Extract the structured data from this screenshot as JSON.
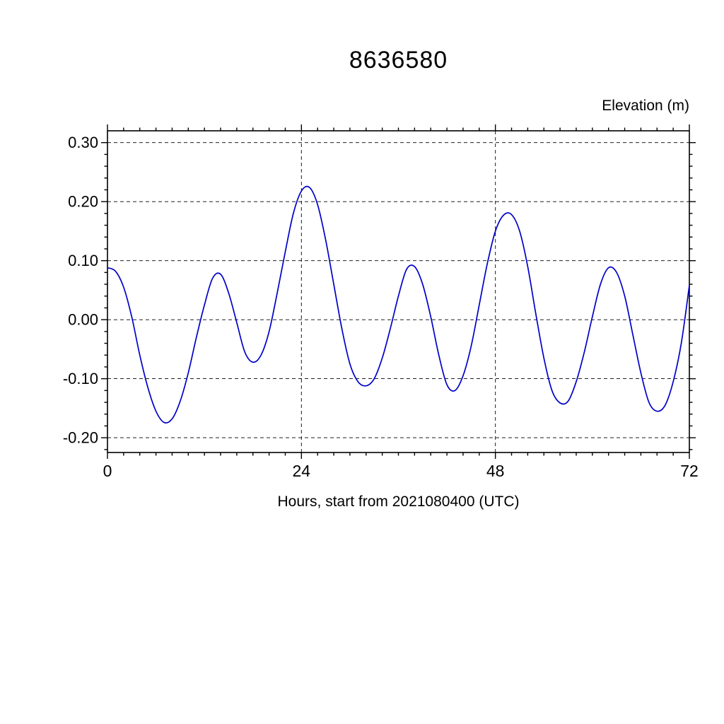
{
  "title": "8636580",
  "ylabel": "Elevation (m)",
  "xlabel": "Hours, start from 2021080400 (UTC)",
  "chart_data": {
    "type": "line",
    "title": "8636580",
    "xlabel": "Hours, start from 2021080400 (UTC)",
    "ylabel": "Elevation (m)",
    "xlim": [
      0,
      72
    ],
    "ylim": [
      -0.225,
      0.32
    ],
    "x_major_ticks": [
      0,
      24,
      48,
      72
    ],
    "x_tick_labels": [
      "0",
      "24",
      "48",
      "72"
    ],
    "x_minor_step": 2,
    "y_major_ticks": [
      0.3,
      0.2,
      0.1,
      0.0,
      -0.1,
      -0.2
    ],
    "y_tick_labels": [
      "0.30",
      "0.20",
      "0.10",
      "0.00",
      "-0.10",
      "-0.20"
    ],
    "y_minor_step": 0.02,
    "grid_x": [
      24,
      48
    ],
    "grid_y": [
      0.3,
      0.2,
      0.1,
      0.0,
      -0.1,
      -0.2
    ],
    "grid_style": "dashed",
    "line_color": "#0000c8",
    "frame_color": "#000000",
    "x": [
      0,
      1,
      2,
      3,
      4,
      5,
      6,
      7,
      8,
      9,
      10,
      11,
      12,
      13,
      14,
      15,
      16,
      17,
      18,
      19,
      20,
      21,
      22,
      23,
      24,
      25,
      26,
      27,
      28,
      29,
      30,
      31,
      32,
      33,
      34,
      35,
      36,
      37,
      38,
      39,
      40,
      41,
      42,
      43,
      44,
      45,
      46,
      47,
      48,
      49,
      50,
      51,
      52,
      53,
      54,
      55,
      56,
      57,
      58,
      59,
      60,
      61,
      62,
      63,
      64,
      65,
      66,
      67,
      68,
      69,
      70,
      71,
      72
    ],
    "y": [
      0.088,
      0.082,
      0.055,
      0.005,
      -0.06,
      -0.115,
      -0.155,
      -0.174,
      -0.168,
      -0.138,
      -0.09,
      -0.03,
      0.025,
      0.07,
      0.077,
      0.045,
      -0.005,
      -0.055,
      -0.072,
      -0.06,
      -0.02,
      0.045,
      0.115,
      0.18,
      0.218,
      0.224,
      0.195,
      0.135,
      0.06,
      -0.015,
      -0.075,
      -0.105,
      -0.112,
      -0.1,
      -0.065,
      -0.015,
      0.04,
      0.085,
      0.09,
      0.06,
      0.005,
      -0.06,
      -0.11,
      -0.12,
      -0.095,
      -0.045,
      0.025,
      0.095,
      0.15,
      0.177,
      0.178,
      0.15,
      0.09,
      0.01,
      -0.065,
      -0.12,
      -0.141,
      -0.138,
      -0.105,
      -0.055,
      0.005,
      0.06,
      0.088,
      0.08,
      0.04,
      -0.025,
      -0.09,
      -0.14,
      -0.155,
      -0.145,
      -0.105,
      -0.04,
      0.058
    ]
  }
}
